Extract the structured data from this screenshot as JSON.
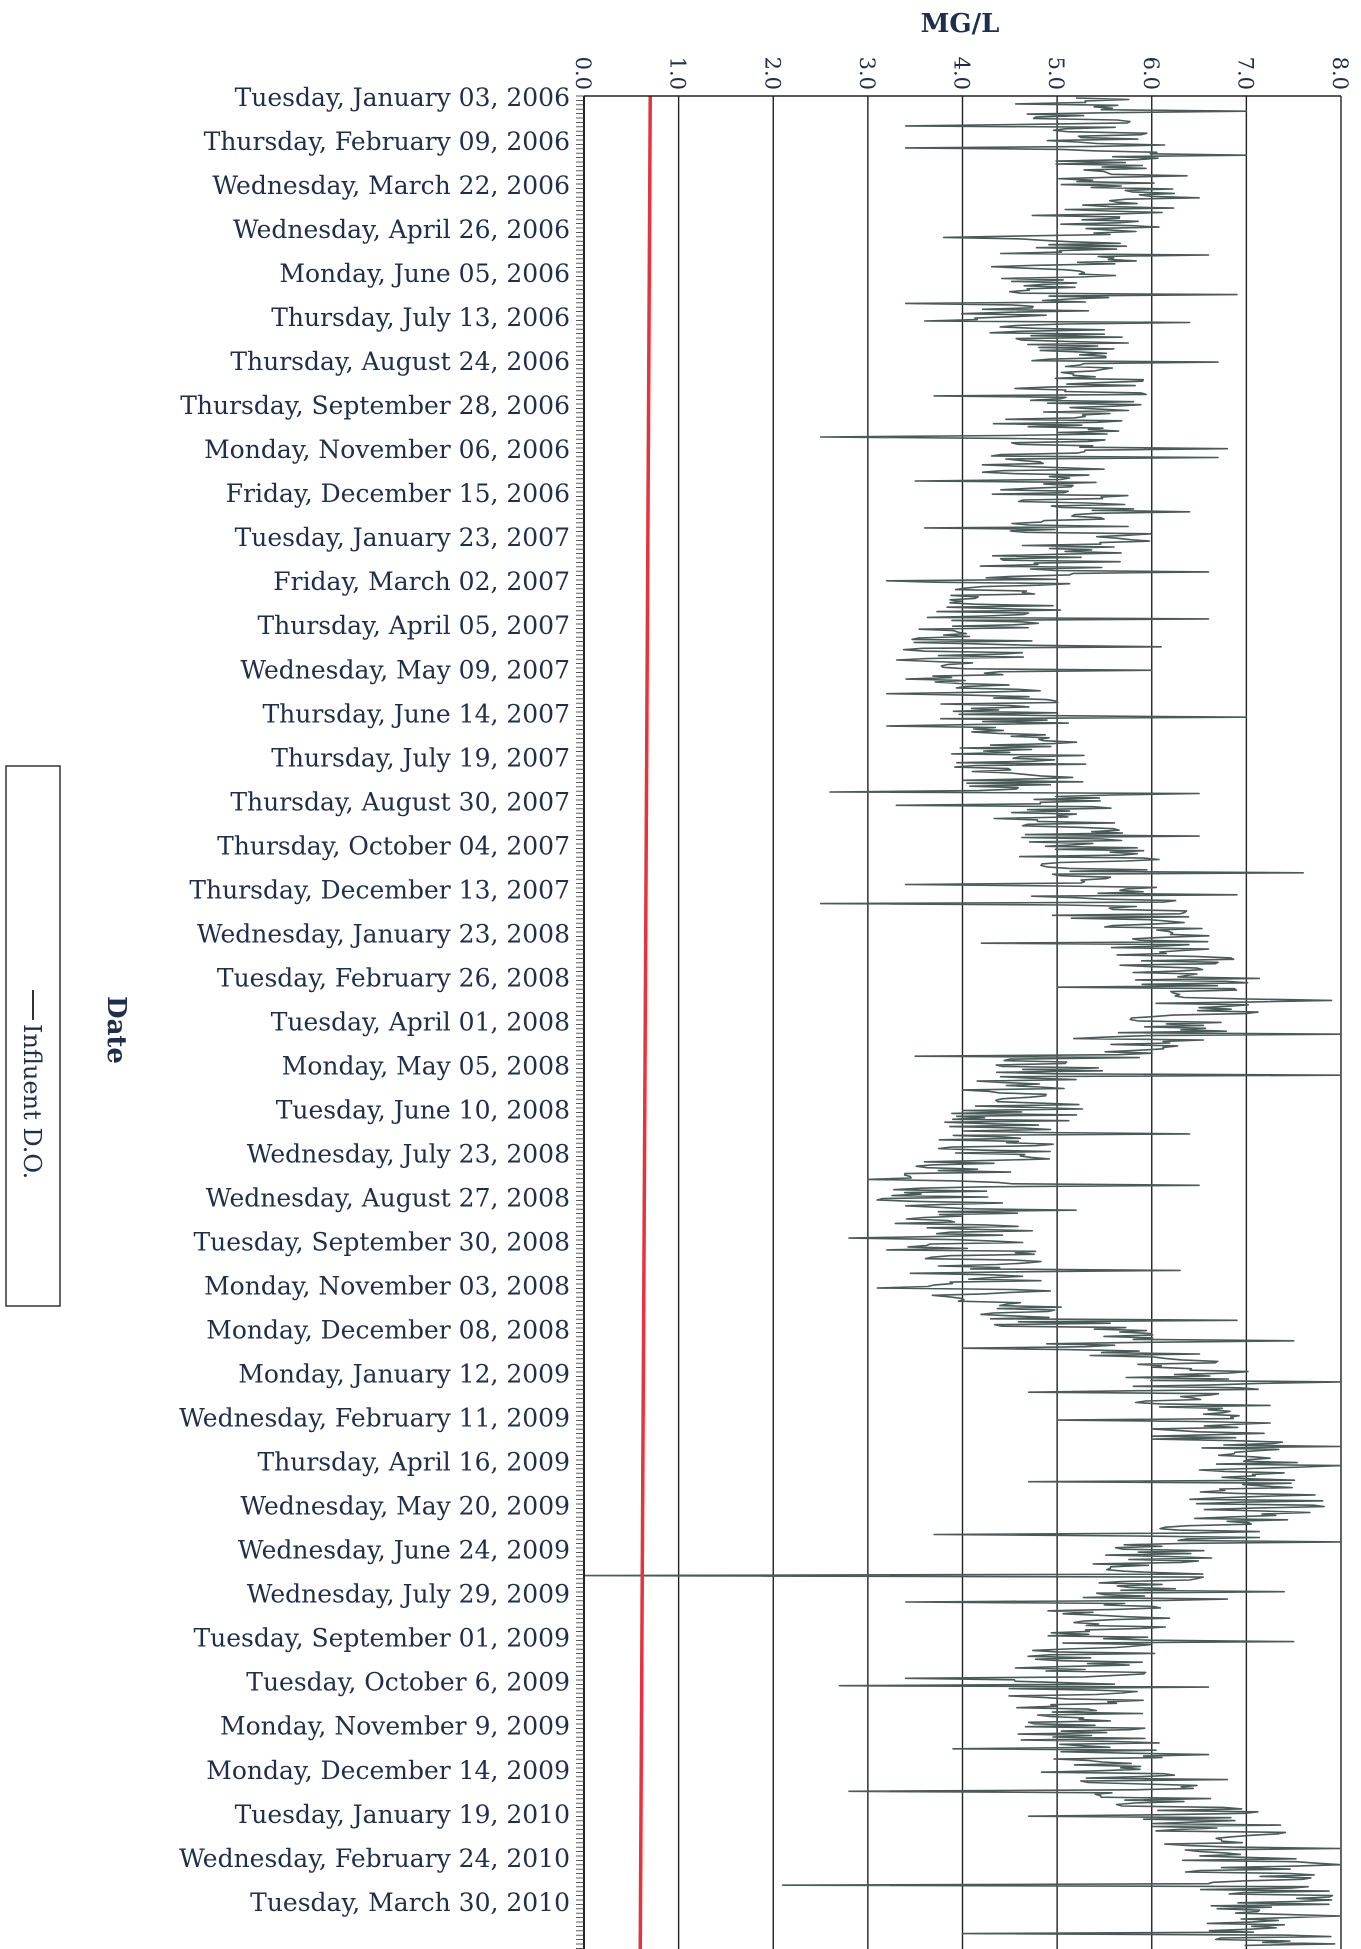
{
  "chart_data": {
    "type": "line",
    "orientation": "rotated",
    "x_axis_title": "MG/L",
    "y_axis_title": "Date",
    "x_range": [
      0.0,
      8.0
    ],
    "x_ticks": [
      "0.0",
      "1.0",
      "2.0",
      "3.0",
      "4.0",
      "5.0",
      "6.0",
      "7.0",
      "8.0"
    ],
    "grid": true,
    "legend": {
      "position": "left",
      "entries": [
        "Influent D.O."
      ]
    },
    "reference_line": {
      "value": 0.7,
      "color": "#e8323c"
    },
    "series_color": "#4a5a58",
    "date_labels": [
      "Tuesday, January 03, 2006",
      "Thursday, February 09, 2006",
      "Wednesday, March 22, 2006",
      "Wednesday, April 26, 2006",
      "Monday, June 05, 2006",
      "Thursday, July 13, 2006",
      "Thursday, August 24, 2006",
      "Thursday, September 28, 2006",
      "Monday, November 06, 2006",
      "Friday, December 15, 2006",
      "Tuesday, January 23, 2007",
      "Friday, March 02, 2007",
      "Thursday, April 05, 2007",
      "Wednesday, May 09, 2007",
      "Thursday, June 14, 2007",
      "Thursday, July 19, 2007",
      "Thursday, August 30, 2007",
      "Thursday, October 04, 2007",
      "Thursday, December 13, 2007",
      "Wednesday, January 23, 2008",
      "Tuesday, February 26, 2008",
      "Tuesday, April 01, 2008",
      "Monday, May 05, 2008",
      "Tuesday, June 10, 2008",
      "Wednesday, July 23, 2008",
      "Wednesday, August 27, 2008",
      "Tuesday, September 30, 2008",
      "Monday, November 03, 2008",
      "Monday, December 08, 2008",
      "Monday, January 12, 2009",
      "Wednesday, February 11, 2009",
      "Thursday, April 16, 2009",
      "Wednesday, May 20, 2009",
      "Wednesday, June 24, 2009",
      "Wednesday, July 29, 2009",
      "Tuesday, September 01, 2009",
      "Tuesday, October 6, 2009",
      "Monday, November 9, 2009",
      "Monday, December 14, 2009",
      "Tuesday, January 19, 2010",
      "Wednesday, February 24, 2010",
      "Tuesday, March 30, 2010"
    ],
    "series": [
      {
        "name": "Influent D.O.",
        "period_values": [
          5.0,
          5.4,
          5.8,
          5.3,
          5.0,
          4.7,
          5.3,
          5.2,
          4.8,
          5.0,
          5.3,
          4.6,
          4.3,
          3.8,
          4.5,
          4.6,
          4.9,
          5.3,
          5.4,
          5.9,
          6.5,
          6.4,
          5.0,
          4.6,
          4.4,
          3.8,
          4.1,
          4.2,
          5.2,
          6.4,
          6.6,
          6.9,
          7.2,
          6.2,
          5.6,
          5.4,
          5.2,
          5.3,
          5.5,
          6.6,
          7.0,
          7.2
        ],
        "excursions_low": [
          3.4,
          3.4,
          3.6,
          3.8,
          3.4,
          3.6,
          3.7,
          2.5,
          3.5,
          3.6,
          3.2,
          3.7,
          3.8,
          3.2,
          3.2,
          2.6,
          3.3,
          3.4,
          2.5,
          4.2,
          5.0,
          3.5,
          4.0,
          4.2,
          3.0,
          2.8,
          3.2,
          3.1,
          4.0,
          4.7,
          5.0,
          4.7,
          3.7,
          0.0,
          3.4,
          3.4,
          2.7,
          3.9,
          2.8,
          4.7,
          2.1,
          4.0
        ],
        "excursions_high": [
          7.0,
          7.0,
          6.5,
          6.6,
          6.9,
          6.4,
          6.7,
          6.8,
          6.7,
          6.4,
          6.6,
          6.6,
          6.1,
          6.0,
          7.0,
          6.5,
          6.5,
          7.6,
          6.9,
          6.6,
          7.9,
          8.0,
          8.0,
          6.4,
          6.5,
          5.2,
          6.3,
          6.9,
          7.5,
          8.0,
          8.0,
          8.0,
          8.0,
          7.4,
          6.8,
          7.5,
          6.6,
          6.6,
          6.8,
          8.0,
          8.0,
          8.0
        ]
      }
    ]
  }
}
